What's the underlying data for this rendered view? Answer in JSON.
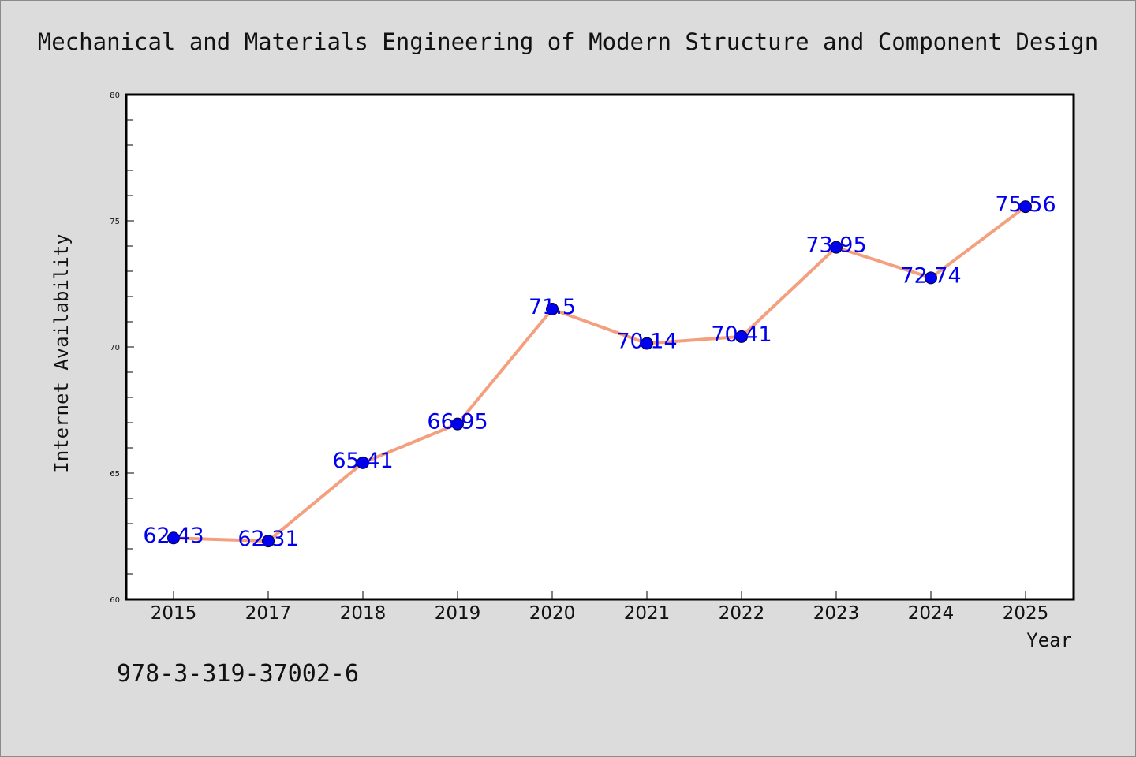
{
  "chart_data": {
    "type": "line",
    "title": "Mechanical and Materials Engineering of Modern Structure and Component Design",
    "xlabel": "Year",
    "ylabel": "Internet Availability",
    "categories": [
      "2015",
      "2017",
      "2018",
      "2019",
      "2020",
      "2021",
      "2022",
      "2023",
      "2024",
      "2025"
    ],
    "values": [
      62.43,
      62.31,
      65.41,
      66.95,
      71.5,
      70.14,
      70.41,
      73.95,
      72.74,
      75.56
    ],
    "data_labels": [
      "62.43",
      "62.31",
      "65.41",
      "66.95",
      "71.5",
      "70.14",
      "70.41",
      "73.95",
      "72.74",
      "75.56"
    ],
    "ylim": [
      60,
      80
    ],
    "yticks": [
      60,
      65,
      70,
      75,
      80
    ],
    "grid": false,
    "legend": "none",
    "colors": {
      "line": "#f4a07e",
      "marker": "#0000ee",
      "label": "#0000ee",
      "plot_bg": "#ffffff",
      "page_bg": "#dcdcdc"
    }
  },
  "footnote": "978-3-319-37002-6"
}
